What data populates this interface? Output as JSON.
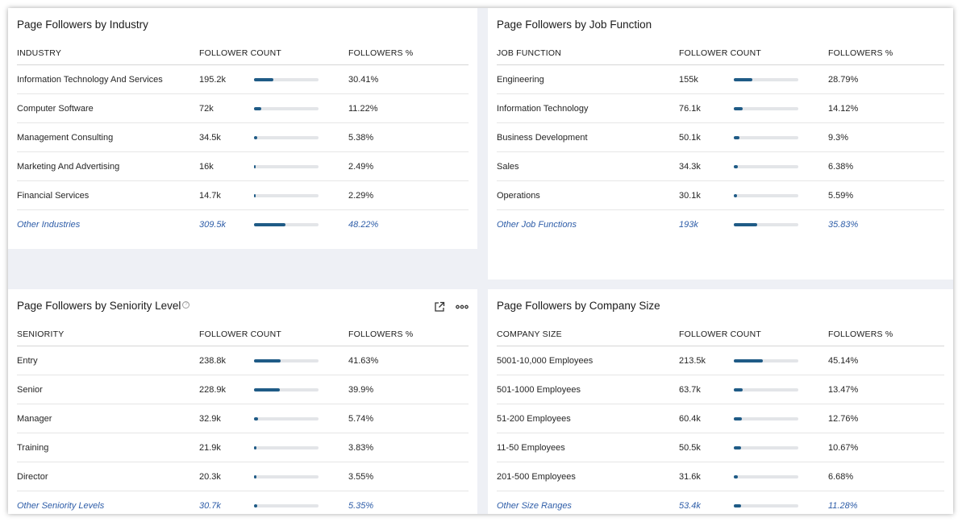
{
  "colors": {
    "bar_fill": "#1f5b86",
    "bar_track": "#e3e5e8",
    "link": "#2e5da8",
    "background": "#eef0f5"
  },
  "industry": {
    "title": "Page Followers by Industry",
    "headers": [
      "INDUSTRY",
      "FOLLOWER COUNT",
      "FOLLOWERS %"
    ],
    "rows": [
      {
        "name": "Information Technology And Services",
        "count": "195.2k",
        "pct": "30.41%",
        "share": 30.41
      },
      {
        "name": "Computer Software",
        "count": "72k",
        "pct": "11.22%",
        "share": 11.22
      },
      {
        "name": "Management Consulting",
        "count": "34.5k",
        "pct": "5.38%",
        "share": 5.38
      },
      {
        "name": "Marketing And Advertising",
        "count": "16k",
        "pct": "2.49%",
        "share": 2.49
      },
      {
        "name": "Financial Services",
        "count": "14.7k",
        "pct": "2.29%",
        "share": 2.29
      },
      {
        "name": "Other Industries",
        "count": "309.5k",
        "pct": "48.22%",
        "share": 48.22
      }
    ]
  },
  "job": {
    "title": "Page Followers by Job Function",
    "headers": [
      "JOB FUNCTION",
      "FOLLOWER COUNT",
      "FOLLOWERS %"
    ],
    "rows": [
      {
        "name": "Engineering",
        "count": "155k",
        "pct": "28.79%",
        "share": 28.79
      },
      {
        "name": "Information Technology",
        "count": "76.1k",
        "pct": "14.12%",
        "share": 14.12
      },
      {
        "name": "Business Development",
        "count": "50.1k",
        "pct": "9.3%",
        "share": 9.3
      },
      {
        "name": "Sales",
        "count": "34.3k",
        "pct": "6.38%",
        "share": 6.38
      },
      {
        "name": "Operations",
        "count": "30.1k",
        "pct": "5.59%",
        "share": 5.59
      },
      {
        "name": "Other Job Functions",
        "count": "193k",
        "pct": "35.83%",
        "share": 35.83
      }
    ]
  },
  "seniority": {
    "title": "Page Followers by Seniority Level",
    "info_icon": "info-icon",
    "actions": [
      "external-link-icon",
      "more-options-icon"
    ],
    "headers": [
      "SENIORITY",
      "FOLLOWER COUNT",
      "FOLLOWERS %"
    ],
    "rows": [
      {
        "name": "Entry",
        "count": "238.8k",
        "pct": "41.63%",
        "share": 41.63
      },
      {
        "name": "Senior",
        "count": "228.9k",
        "pct": "39.9%",
        "share": 39.9
      },
      {
        "name": "Manager",
        "count": "32.9k",
        "pct": "5.74%",
        "share": 5.74
      },
      {
        "name": "Training",
        "count": "21.9k",
        "pct": "3.83%",
        "share": 3.83
      },
      {
        "name": "Director",
        "count": "20.3k",
        "pct": "3.55%",
        "share": 3.55
      },
      {
        "name": "Other Seniority Levels",
        "count": "30.7k",
        "pct": "5.35%",
        "share": 5.35
      }
    ]
  },
  "size": {
    "title": "Page Followers by Company Size",
    "headers": [
      "COMPANY SIZE",
      "FOLLOWER COUNT",
      "FOLLOWERS %"
    ],
    "rows": [
      {
        "name": "5001-10,000 Employees",
        "count": "213.5k",
        "pct": "45.14%",
        "share": 45.14
      },
      {
        "name": "501-1000 Employees",
        "count": "63.7k",
        "pct": "13.47%",
        "share": 13.47
      },
      {
        "name": "51-200 Employees",
        "count": "60.4k",
        "pct": "12.76%",
        "share": 12.76
      },
      {
        "name": "11-50 Employees",
        "count": "50.5k",
        "pct": "10.67%",
        "share": 10.67
      },
      {
        "name": "201-500 Employees",
        "count": "31.6k",
        "pct": "6.68%",
        "share": 6.68
      },
      {
        "name": "Other Size Ranges",
        "count": "53.4k",
        "pct": "11.28%",
        "share": 11.28
      }
    ]
  }
}
